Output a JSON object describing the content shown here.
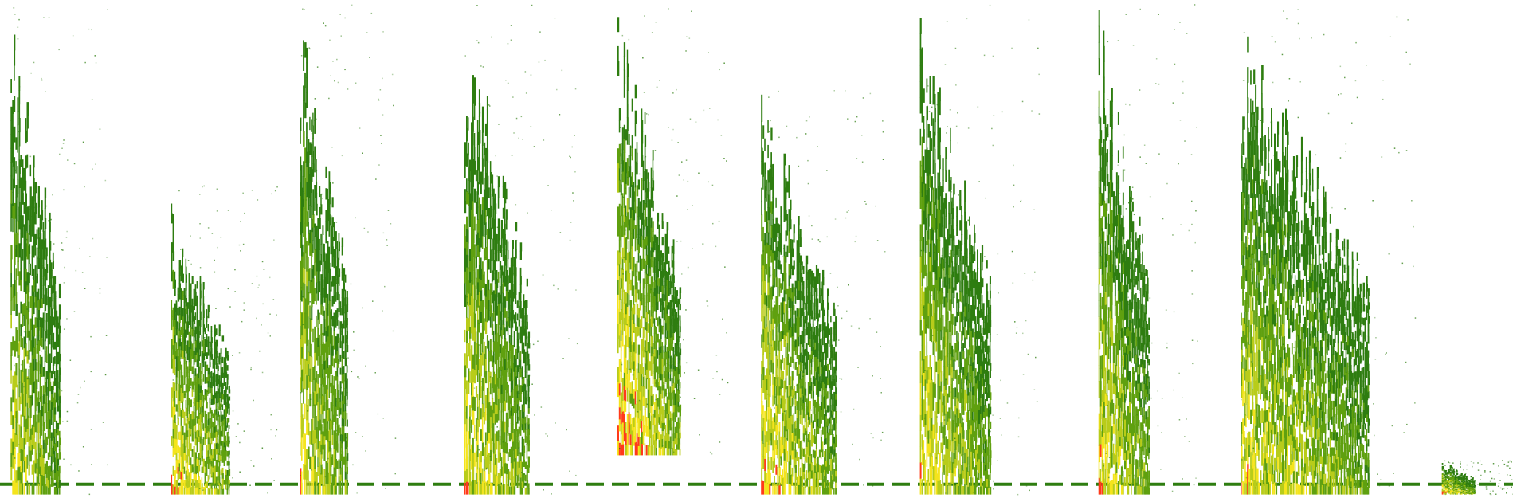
{
  "view": {
    "type": "spectrogram",
    "axes_visible": false,
    "text_labels_visible": false
  },
  "palette": {
    "background": "#ffffff",
    "low": "#2e7d10",
    "mid_low": "#5fa00f",
    "mid": "#b8cc1a",
    "mid_high": "#f4e41c",
    "high": "#ff3a1a"
  },
  "bursts": [
    {
      "id": "burst-1",
      "start": 0.007,
      "end": 0.04,
      "low_freq": 0.0,
      "high_freq": 1.0,
      "peak_intensity": 0.75
    },
    {
      "id": "burst-2",
      "start": 0.113,
      "end": 0.152,
      "low_freq": 0.0,
      "high_freq": 0.63,
      "peak_intensity": 0.9
    },
    {
      "id": "burst-3",
      "start": 0.198,
      "end": 0.23,
      "low_freq": 0.0,
      "high_freq": 1.0,
      "peak_intensity": 0.8
    },
    {
      "id": "burst-4",
      "start": 0.307,
      "end": 0.35,
      "low_freq": 0.0,
      "high_freq": 1.0,
      "peak_intensity": 0.85
    },
    {
      "id": "burst-5",
      "start": 0.408,
      "end": 0.45,
      "low_freq": 0.08,
      "high_freq": 1.0,
      "peak_intensity": 1.0
    },
    {
      "id": "burst-6",
      "start": 0.503,
      "end": 0.553,
      "low_freq": 0.0,
      "high_freq": 0.84,
      "peak_intensity": 0.9
    },
    {
      "id": "burst-7",
      "start": 0.608,
      "end": 0.655,
      "low_freq": 0.0,
      "high_freq": 1.0,
      "peak_intensity": 0.85
    },
    {
      "id": "burst-8",
      "start": 0.726,
      "end": 0.76,
      "low_freq": 0.0,
      "high_freq": 1.0,
      "peak_intensity": 0.85
    },
    {
      "id": "burst-9",
      "start": 0.82,
      "end": 0.905,
      "low_freq": 0.0,
      "high_freq": 1.0,
      "peak_intensity": 0.8
    },
    {
      "id": "burst-10",
      "start": 0.953,
      "end": 0.975,
      "low_freq": 0.0,
      "high_freq": 0.07,
      "peak_intensity": 0.95
    }
  ],
  "baseline": {
    "freq": 0.02,
    "dashed": true
  }
}
